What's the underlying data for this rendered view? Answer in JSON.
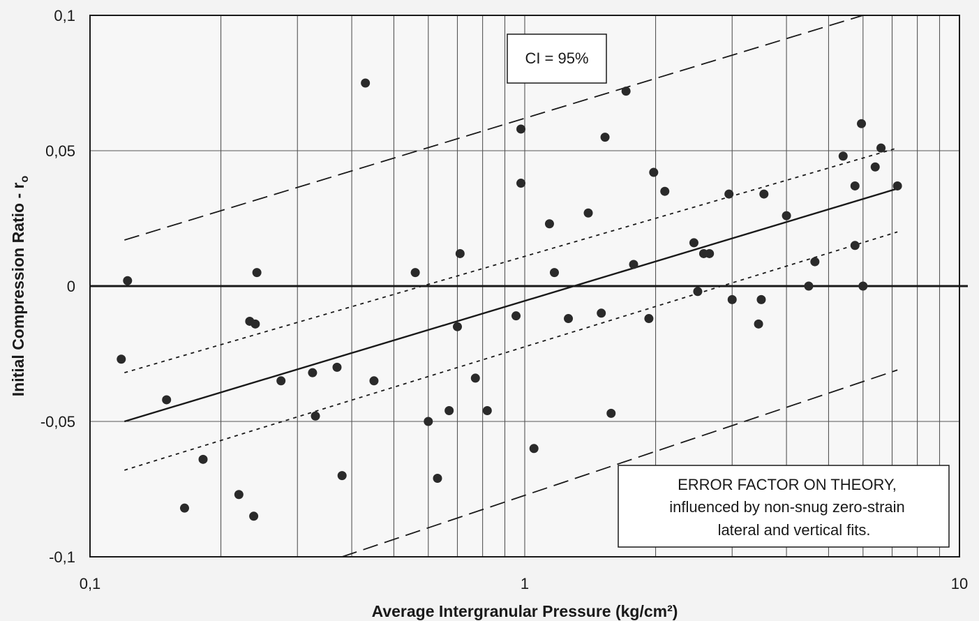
{
  "chart_data": {
    "type": "scatter",
    "x_scale": "log",
    "xlim": [
      0.1,
      10
    ],
    "ylim": [
      -0.1,
      0.1
    ],
    "xlabel": "Average Intergranular Pressure (kg/cm²)",
    "ylabel": "Initial Compression Ratio - r",
    "ylabel_subscript": "o",
    "x_ticks": [
      0.1,
      1,
      10
    ],
    "x_tick_labels": [
      "0,1",
      "1",
      "10"
    ],
    "y_ticks": [
      0.1,
      0.05,
      0,
      -0.05,
      -0.1
    ],
    "y_tick_labels": [
      "0,1",
      "0,05",
      "0",
      "-0,05",
      "-0,1"
    ],
    "grid": true,
    "ci_label": "CI = 95%",
    "note_lines": [
      "ERROR FACTOR ON THEORY,",
      "influenced by non-snug zero-strain",
      "lateral and vertical fits."
    ],
    "points": [
      [
        0.118,
        -0.027
      ],
      [
        0.122,
        0.002
      ],
      [
        0.15,
        -0.042
      ],
      [
        0.165,
        -0.082
      ],
      [
        0.182,
        -0.064
      ],
      [
        0.22,
        -0.077
      ],
      [
        0.233,
        -0.013
      ],
      [
        0.238,
        -0.085
      ],
      [
        0.24,
        -0.014
      ],
      [
        0.242,
        0.005
      ],
      [
        0.275,
        -0.035
      ],
      [
        0.325,
        -0.032
      ],
      [
        0.33,
        -0.048
      ],
      [
        0.37,
        -0.03
      ],
      [
        0.38,
        -0.07
      ],
      [
        0.43,
        0.075
      ],
      [
        0.45,
        -0.035
      ],
      [
        0.56,
        0.005
      ],
      [
        0.6,
        -0.05
      ],
      [
        0.63,
        -0.071
      ],
      [
        0.67,
        -0.046
      ],
      [
        0.7,
        -0.015
      ],
      [
        0.71,
        0.012
      ],
      [
        0.77,
        -0.034
      ],
      [
        0.82,
        -0.046
      ],
      [
        0.955,
        -0.011
      ],
      [
        0.98,
        0.038
      ],
      [
        0.98,
        0.058
      ],
      [
        1.05,
        -0.06
      ],
      [
        1.14,
        0.023
      ],
      [
        1.17,
        0.005
      ],
      [
        1.26,
        -0.012
      ],
      [
        1.4,
        0.027
      ],
      [
        1.5,
        -0.01
      ],
      [
        1.53,
        0.055
      ],
      [
        1.58,
        -0.047
      ],
      [
        1.71,
        0.072
      ],
      [
        1.78,
        0.008
      ],
      [
        1.93,
        -0.012
      ],
      [
        1.98,
        0.042
      ],
      [
        2.1,
        0.035
      ],
      [
        2.45,
        0.016
      ],
      [
        2.5,
        -0.002
      ],
      [
        2.58,
        0.012
      ],
      [
        2.66,
        0.012
      ],
      [
        2.95,
        0.034
      ],
      [
        3.0,
        -0.005
      ],
      [
        3.45,
        -0.014
      ],
      [
        3.5,
        -0.005
      ],
      [
        3.55,
        0.034
      ],
      [
        4.0,
        0.026
      ],
      [
        4.5,
        0.0
      ],
      [
        4.65,
        0.009
      ],
      [
        5.4,
        0.048
      ],
      [
        5.75,
        0.037
      ],
      [
        5.75,
        0.015
      ],
      [
        5.95,
        0.06
      ],
      [
        6.0,
        0.0
      ],
      [
        6.4,
        0.044
      ],
      [
        6.6,
        0.051
      ],
      [
        7.2,
        0.037
      ]
    ],
    "lines": [
      {
        "kind": "regression",
        "style": "solid",
        "x": [
          0.12,
          7.2
        ],
        "y": [
          -0.05,
          0.036
        ]
      },
      {
        "kind": "confidence-upper",
        "style": "dotted",
        "x": [
          0.12,
          7.2
        ],
        "y": [
          -0.032,
          0.051
        ]
      },
      {
        "kind": "confidence-lower",
        "style": "dotted",
        "x": [
          0.12,
          7.2
        ],
        "y": [
          -0.068,
          0.02
        ]
      },
      {
        "kind": "prediction-upper",
        "style": "dashed",
        "x": [
          0.12,
          6.0
        ],
        "y": [
          0.017,
          0.1
        ]
      },
      {
        "kind": "prediction-lower",
        "style": "dashed",
        "x": [
          0.38,
          7.2
        ],
        "y": [
          -0.1,
          -0.031
        ]
      }
    ],
    "zero_line_y": 0
  },
  "colors": {
    "background": "#f3f3f3",
    "plot_bg": "#f7f7f7",
    "ink": "#1a1a1a",
    "grid": "#555555"
  }
}
